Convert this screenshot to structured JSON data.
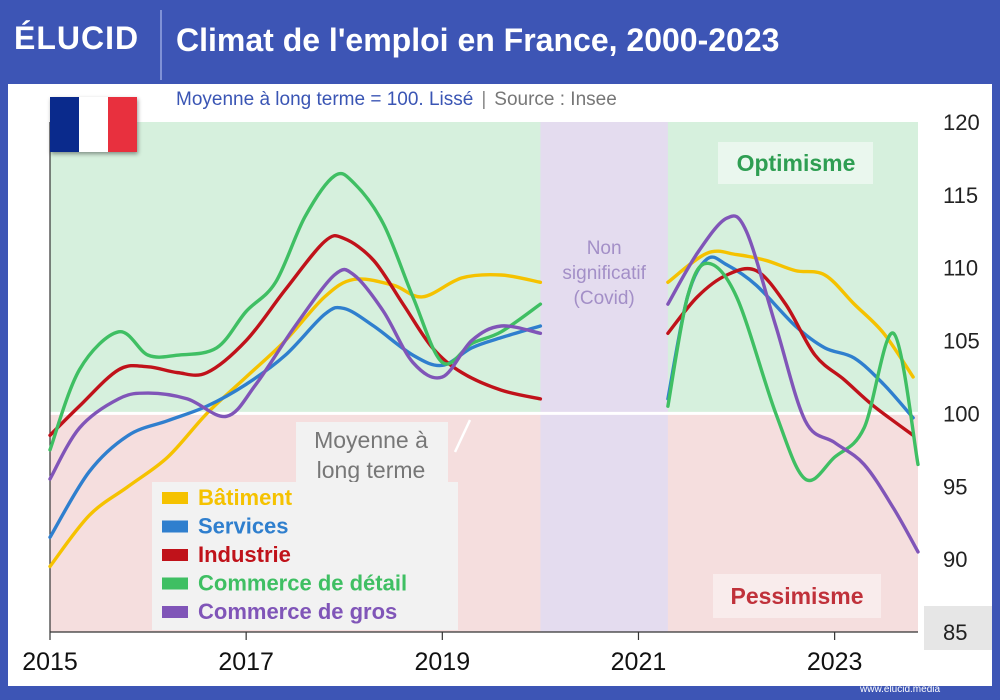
{
  "header": {
    "logo": "ÉLUCID",
    "title": "Climat de l'emploi en France, 2000-2023"
  },
  "subtitle": {
    "main": "Moyenne à long terme = 100. Lissé",
    "separator": "|",
    "source": "Source : Insee"
  },
  "footer": {
    "url": "www.elucid.media"
  },
  "flag": {
    "colors": [
      "#0a2a8c",
      "#ffffff",
      "#e8303e"
    ]
  },
  "annotations": {
    "optimism": "Optimisme",
    "pessimism": "Pessimisme",
    "non_significant": [
      "Non",
      "significatif",
      "(Covid)"
    ],
    "baseline_label": [
      "Moyenne à",
      "long terme"
    ]
  },
  "colors": {
    "optimism_zone": "#d6f0dd",
    "pessimism_zone": "#f5dede",
    "covid_band": "#e4dcef",
    "optimism_text": "#2e9e52",
    "pessimism_text": "#c0313a",
    "covid_text": "#a38fc7"
  },
  "chart_data": {
    "type": "line",
    "x_ticks": [
      "2015",
      "2017",
      "2019",
      "2021",
      "2023"
    ],
    "y_ticks": [
      85,
      90,
      95,
      100,
      105,
      110,
      115,
      120
    ],
    "ylim": [
      85,
      120
    ],
    "xlim": [
      2015,
      2023.85
    ],
    "baseline": 100,
    "gap": [
      2020.0,
      2021.3
    ],
    "grid": false,
    "legend_position": "bottom-left",
    "series": [
      {
        "name": "Bâtiment",
        "color": "#f5c200",
        "segments": [
          [
            [
              2015.0,
              89.5
            ],
            [
              2015.4,
              93
            ],
            [
              2015.8,
              95
            ],
            [
              2016.2,
              97
            ],
            [
              2016.6,
              100
            ],
            [
              2017.0,
              102.5
            ],
            [
              2017.4,
              105
            ],
            [
              2017.8,
              108
            ],
            [
              2018.1,
              109.2
            ],
            [
              2018.5,
              108.8
            ],
            [
              2018.8,
              108
            ],
            [
              2019.2,
              109.3
            ],
            [
              2019.6,
              109.5
            ],
            [
              2020.0,
              109
            ]
          ],
          [
            [
              2021.3,
              109
            ],
            [
              2021.7,
              111
            ],
            [
              2022.0,
              110.9
            ],
            [
              2022.3,
              110.5
            ],
            [
              2022.6,
              109.8
            ],
            [
              2022.9,
              109.5
            ],
            [
              2023.2,
              107.5
            ],
            [
              2023.5,
              105.5
            ],
            [
              2023.8,
              102.5
            ]
          ]
        ]
      },
      {
        "name": "Services",
        "color": "#2f7fce",
        "segments": [
          [
            [
              2015.0,
              91.5
            ],
            [
              2015.4,
              96
            ],
            [
              2015.8,
              98.5
            ],
            [
              2016.2,
              99.5
            ],
            [
              2016.6,
              100.5
            ],
            [
              2017.0,
              102
            ],
            [
              2017.4,
              104
            ],
            [
              2017.8,
              106.8
            ],
            [
              2018.0,
              107.2
            ],
            [
              2018.3,
              106
            ],
            [
              2018.7,
              104
            ],
            [
              2019.0,
              103.3
            ],
            [
              2019.3,
              104.5
            ],
            [
              2019.6,
              105.2
            ],
            [
              2020.0,
              106
            ]
          ],
          [
            [
              2021.3,
              101
            ],
            [
              2021.5,
              108
            ],
            [
              2021.7,
              110.6
            ],
            [
              2021.9,
              110.2
            ],
            [
              2022.2,
              108.8
            ],
            [
              2022.6,
              106
            ],
            [
              2022.9,
              104.5
            ],
            [
              2023.2,
              103.8
            ],
            [
              2023.5,
              102
            ],
            [
              2023.8,
              99.7
            ]
          ]
        ]
      },
      {
        "name": "Industrie",
        "color": "#c0121a",
        "segments": [
          [
            [
              2015.0,
              98.5
            ],
            [
              2015.3,
              100.5
            ],
            [
              2015.7,
              103
            ],
            [
              2016.0,
              103.2
            ],
            [
              2016.3,
              102.8
            ],
            [
              2016.6,
              102.8
            ],
            [
              2017.0,
              105
            ],
            [
              2017.4,
              108.5
            ],
            [
              2017.8,
              111.8
            ],
            [
              2018.0,
              112
            ],
            [
              2018.3,
              110.5
            ],
            [
              2018.6,
              107.5
            ],
            [
              2018.9,
              104.5
            ],
            [
              2019.2,
              102.8
            ],
            [
              2019.6,
              101.6
            ],
            [
              2020.0,
              101
            ]
          ],
          [
            [
              2021.3,
              105.5
            ],
            [
              2021.6,
              108
            ],
            [
              2021.9,
              109.5
            ],
            [
              2022.2,
              109.8
            ],
            [
              2022.5,
              107.5
            ],
            [
              2022.8,
              104
            ],
            [
              2023.1,
              102.3
            ],
            [
              2023.4,
              100.5
            ],
            [
              2023.8,
              98.5
            ]
          ]
        ]
      },
      {
        "name": "Commerce de détail",
        "color": "#3fbf63",
        "segments": [
          [
            [
              2015.0,
              97.5
            ],
            [
              2015.3,
              103
            ],
            [
              2015.7,
              105.6
            ],
            [
              2016.0,
              104
            ],
            [
              2016.3,
              104
            ],
            [
              2016.7,
              104.5
            ],
            [
              2017.0,
              107
            ],
            [
              2017.3,
              109
            ],
            [
              2017.6,
              113.5
            ],
            [
              2017.9,
              116.3
            ],
            [
              2018.1,
              115.8
            ],
            [
              2018.4,
              113
            ],
            [
              2018.7,
              108
            ],
            [
              2019.0,
              103.5
            ],
            [
              2019.3,
              104.8
            ],
            [
              2019.6,
              105.6
            ],
            [
              2020.0,
              107.5
            ]
          ],
          [
            [
              2021.3,
              100.5
            ],
            [
              2021.5,
              108
            ],
            [
              2021.7,
              110.3
            ],
            [
              2022.0,
              108
            ],
            [
              2022.4,
              100
            ],
            [
              2022.7,
              95.5
            ],
            [
              2023.0,
              97
            ],
            [
              2023.3,
              99
            ],
            [
              2023.6,
              105.5
            ],
            [
              2023.85,
              96.5
            ]
          ]
        ]
      },
      {
        "name": "Commerce de gros",
        "color": "#8055b8",
        "segments": [
          [
            [
              2015.0,
              95.5
            ],
            [
              2015.3,
              99
            ],
            [
              2015.7,
              101
            ],
            [
              2016.0,
              101.4
            ],
            [
              2016.4,
              101
            ],
            [
              2016.8,
              99.8
            ],
            [
              2017.1,
              102
            ],
            [
              2017.5,
              106
            ],
            [
              2017.9,
              109.5
            ],
            [
              2018.1,
              109.5
            ],
            [
              2018.4,
              107
            ],
            [
              2018.7,
              103.5
            ],
            [
              2019.0,
              102.5
            ],
            [
              2019.3,
              105
            ],
            [
              2019.6,
              106
            ],
            [
              2020.0,
              105.5
            ]
          ],
          [
            [
              2021.3,
              107.5
            ],
            [
              2021.6,
              111
            ],
            [
              2021.9,
              113.4
            ],
            [
              2022.1,
              112.5
            ],
            [
              2022.4,
              106
            ],
            [
              2022.7,
              99.5
            ],
            [
              2023.0,
              98
            ],
            [
              2023.3,
              96.5
            ],
            [
              2023.6,
              93.5
            ],
            [
              2023.85,
              90.5
            ]
          ]
        ]
      }
    ]
  }
}
